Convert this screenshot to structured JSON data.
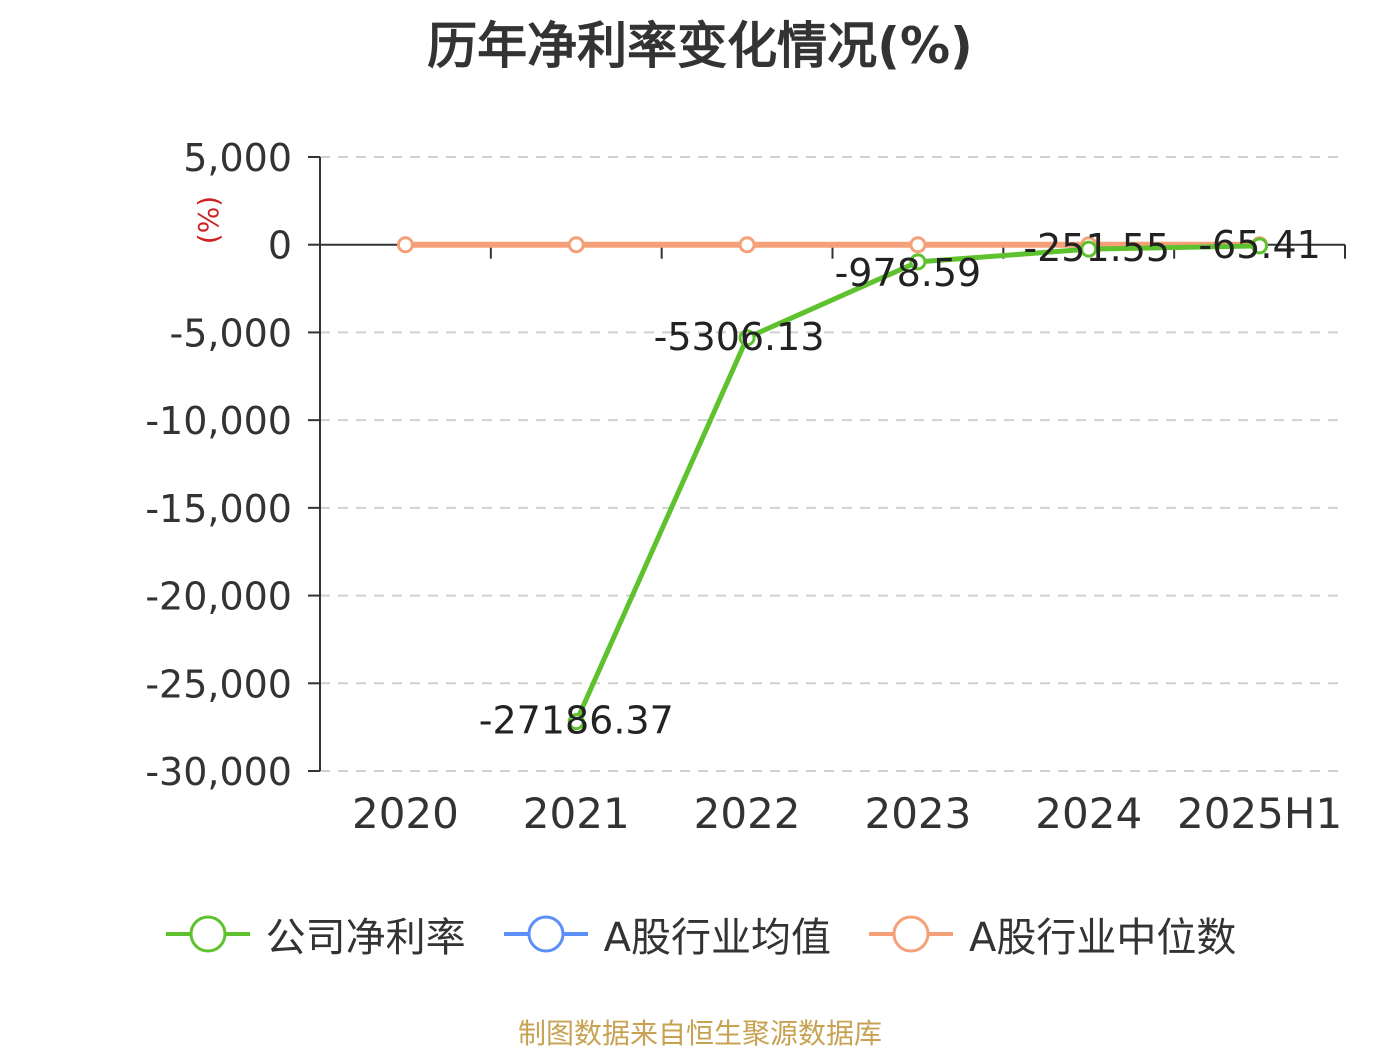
{
  "title": "历年净利率变化情况(%)",
  "source": "制图数据来自恒生聚源数据库",
  "chart_data": {
    "type": "line",
    "categories": [
      "2020",
      "2021",
      "2022",
      "2023",
      "2024",
      "2025H1"
    ],
    "ylabel": "(%)",
    "ylim": [
      -30000,
      5000
    ],
    "yticks": [
      5000,
      0,
      -5000,
      -10000,
      -15000,
      -20000,
      -25000,
      -30000
    ],
    "ytick_labels": [
      "5,000",
      "0",
      "-5,000",
      "-10,000",
      "-15,000",
      "-20,000",
      "-25,000",
      "-30,000"
    ],
    "grid": true,
    "legend_position": "bottom",
    "series": [
      {
        "name": "公司净利率",
        "color": "#5ec22e",
        "values": [
          null,
          -27186.37,
          -5306.13,
          -978.59,
          -251.55,
          -65.41
        ],
        "labels": [
          "",
          "-27186.37",
          "-5306.13",
          "-978.59",
          "-251.55",
          "-65.41"
        ]
      },
      {
        "name": "A股行业均值",
        "color": "#5b8ff9",
        "values": [
          null,
          null,
          null,
          null,
          null,
          null
        ]
      },
      {
        "name": "A股行业中位数",
        "color": "#f5a078",
        "values": [
          0,
          0,
          0,
          0,
          0,
          0
        ]
      }
    ]
  }
}
